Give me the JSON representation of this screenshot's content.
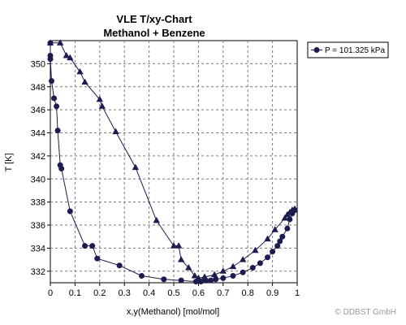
{
  "chart_data": {
    "type": "line",
    "title": "VLE T/xy-Chart",
    "subtitle": "Methanol + Benzene",
    "xlabel": "x,y(Methanol) [mol/mol]",
    "ylabel": "T [K]",
    "xlim": [
      0,
      1
    ],
    "ylim": [
      331,
      352
    ],
    "xticks": [
      0,
      0.1,
      0.2,
      0.3,
      0.4,
      0.5,
      0.6,
      0.7,
      0.8,
      0.9,
      1
    ],
    "xtick_labels": [
      "0",
      "0.1",
      "0.2",
      "0.3",
      "0.4",
      "0.5",
      "0.6",
      "0.7",
      "0.8",
      "0.9",
      "1"
    ],
    "yticks": [
      332,
      334,
      336,
      338,
      340,
      342,
      344,
      346,
      348,
      350
    ],
    "ytick_labels": [
      "332",
      "334",
      "336",
      "338",
      "340",
      "342",
      "344",
      "346",
      "348",
      "350"
    ],
    "grid": true,
    "legend_position": "top-right",
    "series": [
      {
        "name": "P = 101.325 kPa",
        "color": "#1c1c4e",
        "liquid_x": [
          0.0,
          0.0,
          0.0,
          0.005,
          0.015,
          0.025,
          0.03,
          0.04,
          0.045,
          0.08,
          0.14,
          0.17,
          0.19,
          0.28,
          0.37,
          0.46,
          0.53,
          0.59,
          0.61,
          0.63,
          0.65,
          0.67,
          0.7,
          0.74,
          0.78,
          0.82,
          0.85,
          0.88,
          0.9,
          0.92,
          0.93,
          0.94,
          0.96,
          0.97,
          0.98,
          0.99
        ],
        "liquid_T": [
          351.8,
          350.7,
          350.4,
          348.5,
          347.0,
          346.3,
          344.2,
          341.2,
          340.9,
          337.2,
          334.2,
          334.2,
          333.1,
          332.5,
          331.6,
          331.3,
          331.2,
          331.1,
          331.1,
          331.2,
          331.2,
          331.3,
          331.4,
          331.6,
          331.9,
          332.3,
          332.7,
          333.2,
          333.7,
          334.2,
          334.6,
          335.0,
          335.7,
          336.5,
          337.0,
          337.3
        ],
        "vapor_x": [
          0.0,
          0.04,
          0.065,
          0.08,
          0.12,
          0.14,
          0.2,
          0.21,
          0.265,
          0.345,
          0.43,
          0.5,
          0.52,
          0.53,
          0.56,
          0.585,
          0.6,
          0.625,
          0.665,
          0.7,
          0.74,
          0.78,
          0.83,
          0.88,
          0.91,
          0.95,
          0.96,
          0.97,
          0.98,
          0.99
        ],
        "vapor_T": [
          351.8,
          351.8,
          350.7,
          350.5,
          349.3,
          348.4,
          346.9,
          346.3,
          344.1,
          341.0,
          336.4,
          334.2,
          334.2,
          333.0,
          332.3,
          331.6,
          331.4,
          331.5,
          331.7,
          332.0,
          332.4,
          333.0,
          333.8,
          334.8,
          335.6,
          336.6,
          336.9,
          337.1,
          337.3,
          337.4
        ]
      }
    ]
  },
  "copyright": "© DDBST GmbH"
}
